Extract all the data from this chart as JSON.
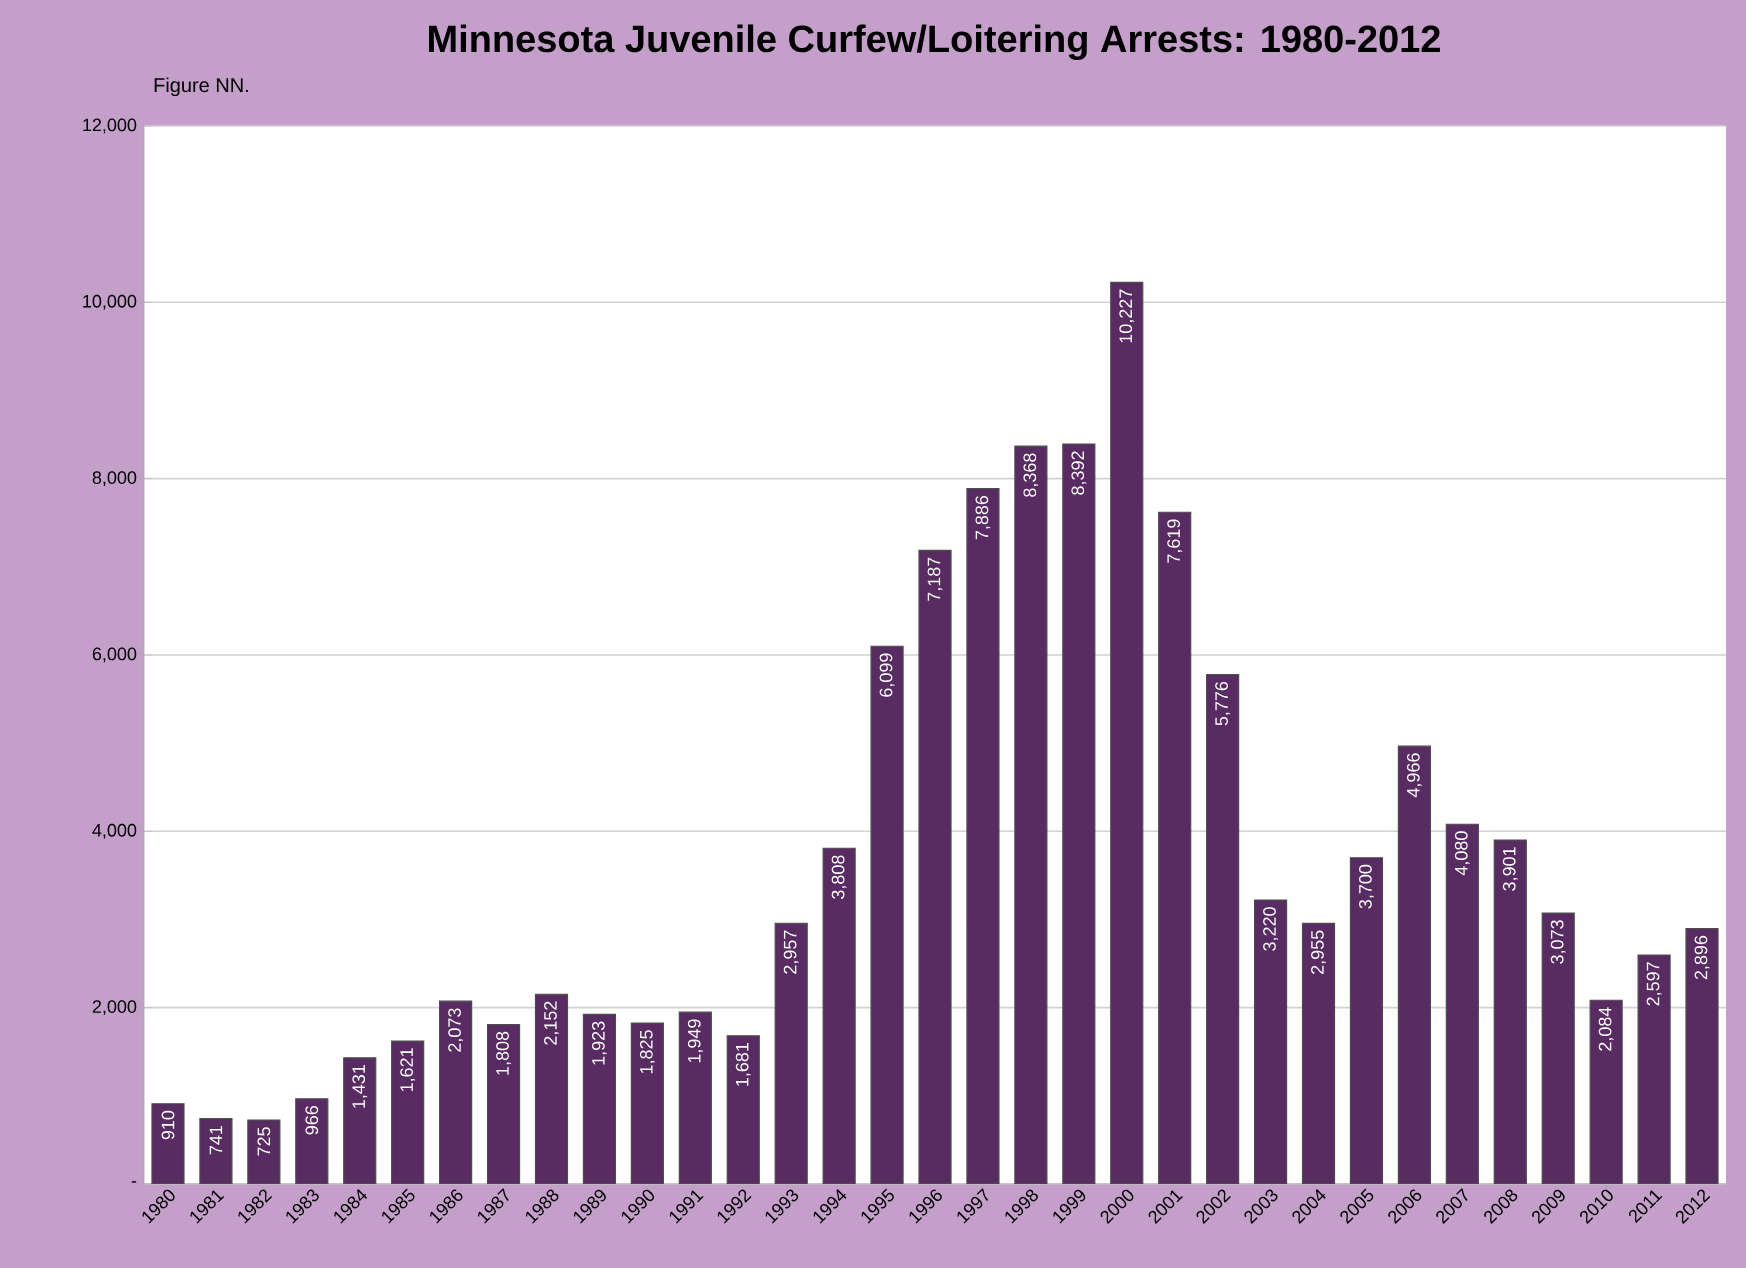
{
  "chart_data": {
    "type": "bar",
    "title": "Minnesota Juvenile Curfew/Loitering Arrests: 1980-2012",
    "annotations": [
      "Figure NN."
    ],
    "categories": [
      "1980",
      "1981",
      "1982",
      "1983",
      "1984",
      "1985",
      "1986",
      "1987",
      "1988",
      "1989",
      "1990",
      "1991",
      "1992",
      "1993",
      "1994",
      "1995",
      "1996",
      "1997",
      "1998",
      "1999",
      "2000",
      "2001",
      "2002",
      "2003",
      "2004",
      "2005",
      "2006",
      "2007",
      "2008",
      "2009",
      "2010",
      "2011",
      "2012"
    ],
    "values": [
      910,
      741,
      725,
      966,
      1431,
      1621,
      2073,
      1808,
      2152,
      1923,
      1825,
      1949,
      1681,
      2957,
      3808,
      6099,
      7187,
      7886,
      8368,
      8392,
      10227,
      7619,
      5776,
      3220,
      2955,
      3700,
      4966,
      4080,
      3901,
      3073,
      2084,
      2597,
      2896
    ],
    "value_labels": [
      "910",
      "741",
      "725",
      "966",
      "1,431",
      "1,621",
      "2,073",
      "1,808",
      "2,152",
      "1,923",
      "1,825",
      "1,949",
      "1,681",
      "2,957",
      "3,808",
      "6,099",
      "7,187",
      "7,886",
      "8,368",
      "8,392",
      "10,227",
      "7,619",
      "5,776",
      "3,220",
      "2,955",
      "3,700",
      "4,966",
      "4,080",
      "3,901",
      "3,073",
      "2,084",
      "2,597",
      "2,896"
    ],
    "color": "#582c62",
    "ylim": [
      0,
      12000
    ],
    "yticks": [
      {
        "value": 0,
        "label": "-"
      },
      {
        "value": 2000,
        "label": "2,000"
      },
      {
        "value": 4000,
        "label": "4,000"
      },
      {
        "value": 6000,
        "label": "6,000"
      },
      {
        "value": 8000,
        "label": "8,000"
      },
      {
        "value": 10000,
        "label": "10,000"
      },
      {
        "value": 12000,
        "label": "12,000"
      }
    ],
    "grid": "y"
  }
}
